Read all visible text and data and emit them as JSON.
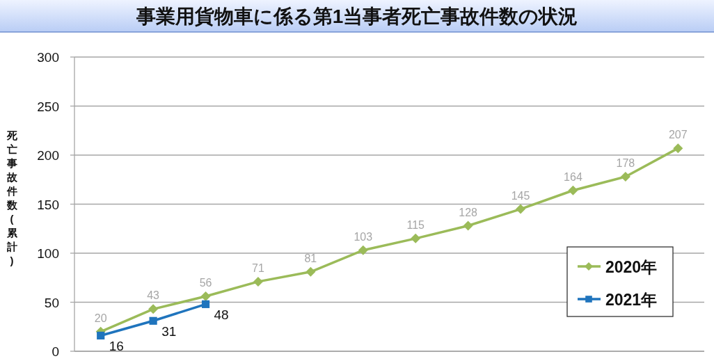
{
  "chart_data": {
    "type": "line",
    "title": "事業用貨物車に係る第1当事者死亡事故件数の状況",
    "ylabel": "死亡事故件数(累計)",
    "categories": [
      null,
      null,
      null,
      null,
      null,
      null,
      null,
      null,
      null,
      null,
      null,
      null
    ],
    "series": [
      {
        "name": "2020年",
        "color": "#9bbb59",
        "marker": "diamond",
        "values": [
          20,
          43,
          56,
          71,
          81,
          103,
          115,
          128,
          145,
          164,
          178,
          207
        ]
      },
      {
        "name": "2021年",
        "color": "#1f74bd",
        "marker": "square",
        "values": [
          16,
          31,
          48,
          null,
          null,
          null,
          null,
          null,
          null,
          null,
          null,
          null
        ]
      }
    ],
    "ylim": [
      0,
      300
    ],
    "yticks": [
      0,
      50,
      100,
      150,
      200,
      250,
      300
    ],
    "grid": "y",
    "legend": "bottom right",
    "data_labels": true
  }
}
